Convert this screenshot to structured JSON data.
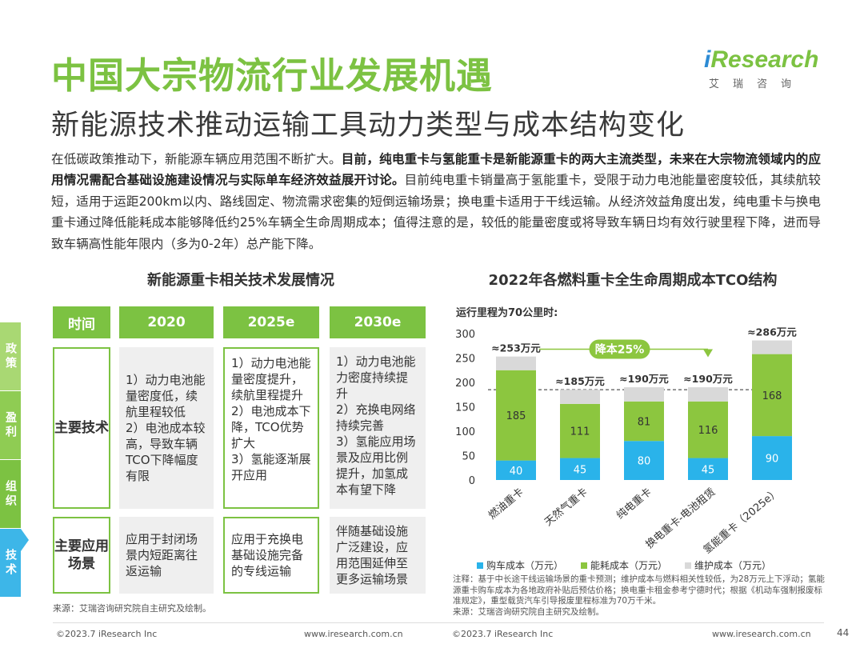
{
  "header": {
    "title": "中国大宗物流行业发展机遇",
    "subtitle": "新能源技术推动运输工具动力类型与成本结构变化",
    "logo_word_i": "i",
    "logo_word": "Research",
    "logo_cn": "艾瑞咨询"
  },
  "intro": {
    "part1": "在低碳政策推动下，新能源车辆应用范围不断扩大。",
    "part2_bold": "目前，纯电重卡与氢能重卡是新能源重卡的两大主流类型，未来在大宗物流领域内的应用情况需配合基础设施建设情况与实际单车经济效益展开讨论。",
    "part3": "目前纯电重卡销量高于氢能重卡，受限于动力电池能量密度较低，其续航较短，适用于运距200km以内、路线固定、物流需求密集的短倒运输场景；换电重卡适用于干线运输。从经济效益角度出发，纯电重卡与换电重卡通过降低能耗成本能够降低约25%车辆全生命周期成本；值得注意的是，较低的能量密度或将导致车辆日均有效行驶里程下降，进而导致车辆高性能年限内（多为0-2年）总产能下降。"
  },
  "side_tabs": [
    "政策",
    "盈利",
    "组织",
    "技术"
  ],
  "table": {
    "title": "新能源重卡相关技术发展情况",
    "headers": [
      "时间",
      "2020",
      "2025e",
      "2030e"
    ],
    "rows": [
      {
        "label": "主要技术",
        "cells": [
          "1）动力电池能量密度低，续航里程较低\n2）电池成本较高，导致车辆TCO下降幅度有限",
          "1）动力电池能量密度提升，续航里程提升\n2）电池成本下降，TCO优势扩大\n3）氢能逐渐展开应用",
          "1）动力电池能力密度持续提升\n2）充换电网络持续完善\n3）氢能应用场景及应用比例提升，加氢成本有望下降"
        ]
      },
      {
        "label": "主要应用场景",
        "cells": [
          "应用于封闭场景内短距离往返运输",
          "应用于充换电基础设施完备的专线运输",
          "伴随基础设施广泛建设，应用范围延伸至更多运输场景"
        ]
      }
    ],
    "source": "来源：艾瑞咨询研究院自主研究及绘制。"
  },
  "chart_data": {
    "type": "bar",
    "stacked": true,
    "title": "2022年各燃料重卡全生命周期成本TCO结构",
    "subtitle": "运行里程为70公里时:",
    "categories": [
      "燃油重卡",
      "天然气重卡",
      "纯电重卡",
      "换电重卡-电池租赁",
      "氢能重卡（2025e）"
    ],
    "series": [
      {
        "name": "购车成本（万元）",
        "color": "#2ab3ea",
        "values": [
          40,
          45,
          80,
          45,
          90
        ]
      },
      {
        "name": "能耗成本（万元）",
        "color": "#8cc63f",
        "values": [
          185,
          111,
          81,
          116,
          168
        ]
      },
      {
        "name": "维护成本（万元）",
        "color": "#d9d9d9",
        "values": [
          28,
          29,
          29,
          29,
          28
        ]
      }
    ],
    "totals": [
      "≈253万元",
      "≈185万元",
      "≈190万元",
      "≈190万元",
      "≈286万元"
    ],
    "ylim": [
      0,
      300
    ],
    "yticks": [
      0,
      50,
      100,
      150,
      200,
      250,
      300
    ],
    "reference_line": 185,
    "annotation": "降本25%",
    "notes": "注释：基于中长途干线运输场景的重卡预测；维护成本与燃料相关性较低，为28万元上下浮动；氢能源重卡购车成本为各地政府补贴后预估价格；换电重卡租金参考宁德时代；根据《机动车强制报废标准规定》，重型载货汽车引导报废里程标准为70万千米。",
    "source": "来源：艾瑞咨询研究院自主研究及绘制。"
  },
  "footer": {
    "left_copy": "©2023.7 iResearch Inc",
    "left_url": "www.iresearch.com.cn",
    "right_copy": "©2023.7 iResearch Inc",
    "right_url": "www.iresearch.com.cn",
    "page": "44"
  }
}
